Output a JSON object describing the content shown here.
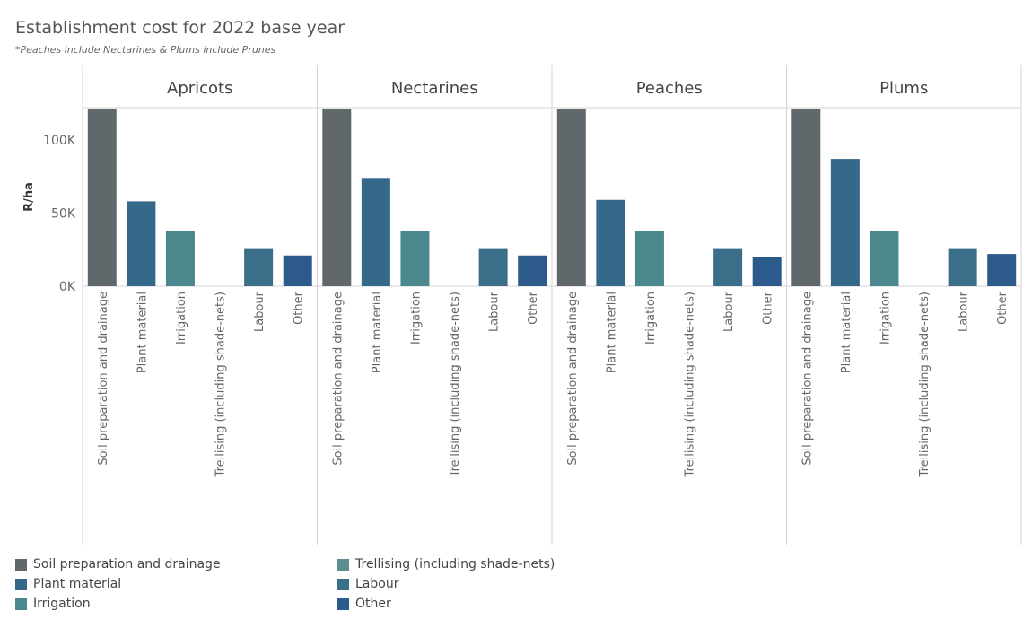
{
  "chart_data": {
    "type": "bar",
    "title": "Establishment cost for 2022 base year",
    "subtitle": "*Peaches include Nectarines & Plums include Prunes",
    "ylabel": "R/ha",
    "ylim": [
      0,
      122000
    ],
    "yticks": [
      {
        "value": 0,
        "label": "0K"
      },
      {
        "value": 50000,
        "label": "50K"
      },
      {
        "value": 100000,
        "label": "100K"
      }
    ],
    "categories": [
      "Soil preparation and drainage",
      "Plant material",
      "Irrigation",
      "Trellising (including shade-nets)",
      "Labour",
      "Other"
    ],
    "colors": [
      "#61686b",
      "#34698a",
      "#4a888d",
      "#5d8c93",
      "#3a6e89",
      "#2c5a8a"
    ],
    "panels": [
      {
        "name": "Apricots",
        "values": [
          121000,
          58000,
          38000,
          0,
          26000,
          21000
        ]
      },
      {
        "name": "Nectarines",
        "values": [
          121000,
          74000,
          38000,
          0,
          26000,
          21000
        ]
      },
      {
        "name": "Peaches",
        "values": [
          121000,
          59000,
          38000,
          0,
          26000,
          20000
        ]
      },
      {
        "name": "Plums",
        "values": [
          121000,
          87000,
          38000,
          0,
          26000,
          22000
        ]
      }
    ],
    "legend": [
      "Soil preparation and drainage",
      "Plant material",
      "Irrigation",
      "Trellising (including shade-nets)",
      "Labour",
      "Other"
    ]
  }
}
